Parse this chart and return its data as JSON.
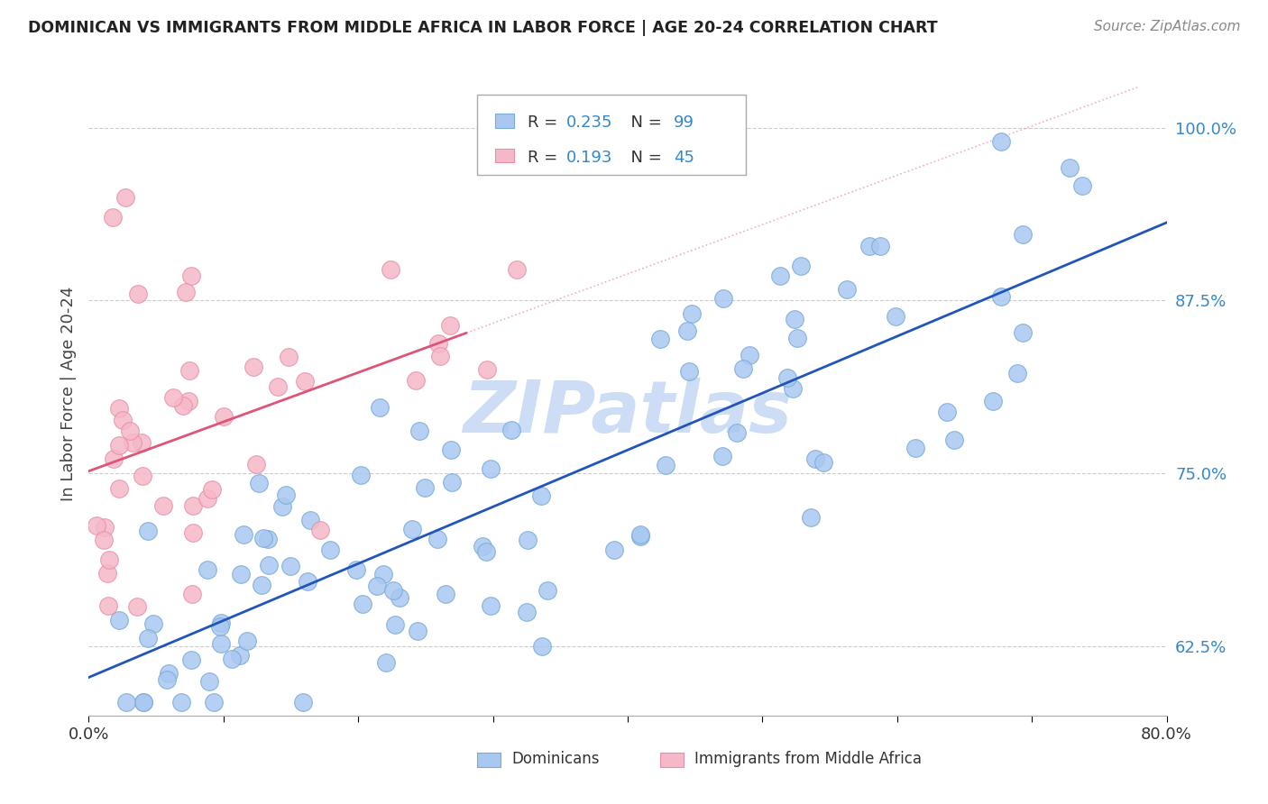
{
  "title": "DOMINICAN VS IMMIGRANTS FROM MIDDLE AFRICA IN LABOR FORCE | AGE 20-24 CORRELATION CHART",
  "source": "Source: ZipAtlas.com",
  "ylabel": "In Labor Force | Age 20-24",
  "xlim": [
    0.0,
    0.8
  ],
  "ylim": [
    0.575,
    1.04
  ],
  "yticks": [
    0.625,
    0.75,
    0.875,
    1.0
  ],
  "ytick_labels": [
    "62.5%",
    "75.0%",
    "87.5%",
    "100.0%"
  ],
  "xticks": [
    0.0,
    0.1,
    0.2,
    0.3,
    0.4,
    0.5,
    0.6,
    0.7,
    0.8
  ],
  "blue_color": "#a8c8f0",
  "blue_edge_color": "#7aaad8",
  "pink_color": "#f5b8c8",
  "pink_edge_color": "#e890a8",
  "blue_line_color": "#2255bb",
  "pink_line_color": "#dd5577",
  "pink_dash_color": "#f0b0c0",
  "grid_color": "#cccccc",
  "watermark_color": "#ccddf5",
  "ytick_color": "#3388cc",
  "R_blue": 0.235,
  "N_blue": 99,
  "R_pink": 0.193,
  "N_pink": 45,
  "legend_label_blue": "Dominicans",
  "legend_label_pink": "Immigrants from Middle Africa"
}
